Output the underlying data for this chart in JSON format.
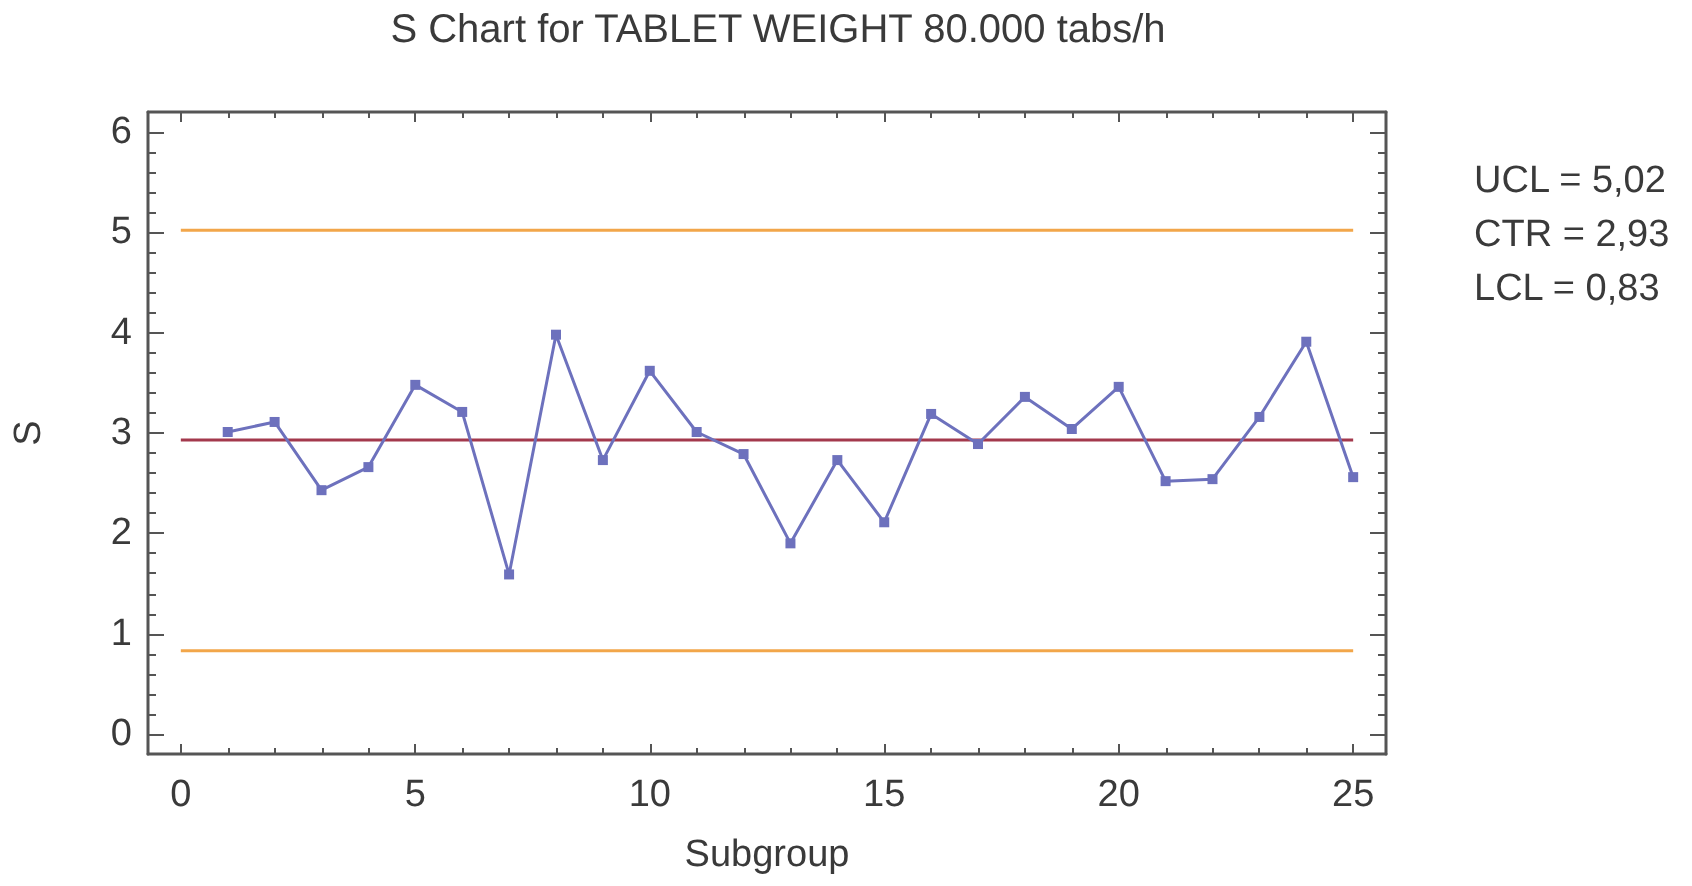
{
  "chart_data": {
    "type": "line",
    "title": "S Chart for TABLET WEIGHT 80.000 tabs/h",
    "xlabel": "Subgroup",
    "ylabel": "S",
    "x": [
      1,
      2,
      3,
      4,
      5,
      6,
      7,
      8,
      9,
      10,
      11,
      12,
      13,
      14,
      15,
      16,
      17,
      18,
      19,
      20,
      21,
      22,
      23,
      24,
      25
    ],
    "series": [
      {
        "color": "#6d71bd",
        "values": [
          3.01,
          3.11,
          2.43,
          2.66,
          3.48,
          3.21,
          1.59,
          3.98,
          2.73,
          3.62,
          3.01,
          2.79,
          1.9,
          2.73,
          2.11,
          3.19,
          2.89,
          3.36,
          3.04,
          3.46,
          2.52,
          2.54,
          3.16,
          3.91,
          2.56
        ]
      }
    ],
    "xlim": [
      -0.7,
      25.7
    ],
    "ylim": [
      -0.2,
      6.2
    ],
    "xticks": [
      0,
      {
        "value": 1,
        "label": null
      },
      {
        "value": 2,
        "label": null
      },
      {
        "value": 3,
        "label": null
      },
      {
        "value": 4,
        "label": null
      },
      5,
      {
        "value": 6,
        "label": null
      },
      {
        "value": 7,
        "label": null
      },
      {
        "value": 8,
        "label": null
      },
      {
        "value": 9,
        "label": null
      },
      10,
      {
        "value": 11,
        "label": null
      },
      {
        "value": 12,
        "label": null
      },
      {
        "value": 13,
        "label": null
      },
      {
        "value": 14,
        "label": null
      },
      15,
      {
        "value": 16,
        "label": null
      },
      {
        "value": 17,
        "label": null
      },
      {
        "value": 18,
        "label": null
      },
      {
        "value": 19,
        "label": null
      },
      20,
      {
        "value": 21,
        "label": null
      },
      {
        "value": 22,
        "label": null
      },
      {
        "value": 23,
        "label": null
      },
      {
        "value": 24,
        "label": null
      },
      25
    ],
    "yticks": [
      0,
      {
        "value": 0.2,
        "label": null
      },
      {
        "value": 0.4,
        "label": null
      },
      {
        "value": 0.6,
        "label": null
      },
      {
        "value": 0.8,
        "label": null
      },
      1,
      {
        "value": 1.2,
        "label": null
      },
      {
        "value": 1.4,
        "label": null
      },
      {
        "value": 1.6,
        "label": null
      },
      {
        "value": 1.8,
        "label": null
      },
      2,
      {
        "value": 2.2,
        "label": null
      },
      {
        "value": 2.4,
        "label": null
      },
      {
        "value": 2.6,
        "label": null
      },
      {
        "value": 2.8,
        "label": null
      },
      3,
      {
        "value": 3.2,
        "label": null
      },
      {
        "value": 3.4,
        "label": null
      },
      {
        "value": 3.6,
        "label": null
      },
      {
        "value": 3.8,
        "label": null
      },
      4,
      {
        "value": 4.2,
        "label": null
      },
      {
        "value": 4.4,
        "label": null
      },
      {
        "value": 4.6,
        "label": null
      },
      {
        "value": 4.8,
        "label": null
      },
      5,
      {
        "value": 5.2,
        "label": null
      },
      {
        "value": 5.4,
        "label": null
      },
      {
        "value": 5.6,
        "label": null
      },
      {
        "value": 5.8,
        "label": null
      },
      6
    ],
    "ref_lines": [
      {
        "axis": "y",
        "value": 5.02,
        "color": "#f2a64a"
      },
      {
        "axis": "y",
        "value": 2.93,
        "color": "#a3394d"
      },
      {
        "axis": "y",
        "value": 0.83,
        "color": "#f2a64a"
      }
    ],
    "annotations": [
      "UCL = 5,02",
      "CTR = 2,93",
      "LCL = 0,83"
    ],
    "marker": "square",
    "line_style": "solid",
    "grid": false
  }
}
